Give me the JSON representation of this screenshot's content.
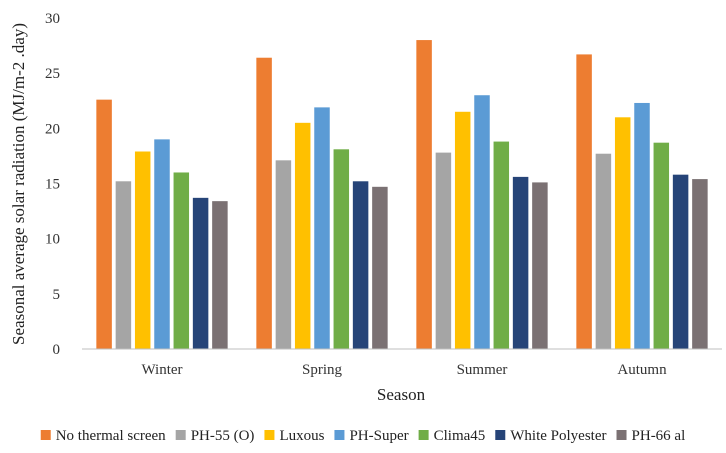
{
  "chart_data": {
    "type": "bar",
    "xlabel": "Season",
    "ylabel": "Seasonal average solar radiation (MJ/m-2 .day)",
    "ylim": [
      0,
      30
    ],
    "yticks": [
      0,
      5,
      10,
      15,
      20,
      25,
      30
    ],
    "grid": false,
    "legend_position": "bottom",
    "categories": [
      "Winter",
      "Spring",
      "Summer",
      "Autumn"
    ],
    "series": [
      {
        "name": "No thermal screen",
        "color": "#ED7D31",
        "values": [
          22.6,
          26.4,
          28.0,
          26.7
        ]
      },
      {
        "name": "PH-55 (O)",
        "color": "#A5A5A5",
        "values": [
          15.2,
          17.1,
          17.8,
          17.7
        ]
      },
      {
        "name": "Luxous",
        "color": "#FFC000",
        "values": [
          17.9,
          20.5,
          21.5,
          21.0
        ]
      },
      {
        "name": "PH-Super",
        "color": "#5B9BD5",
        "values": [
          19.0,
          21.9,
          23.0,
          22.3
        ]
      },
      {
        "name": "Clima45",
        "color": "#70AD47",
        "values": [
          16.0,
          18.1,
          18.8,
          18.7
        ]
      },
      {
        "name": "White Polyester",
        "color": "#264478",
        "values": [
          13.7,
          15.2,
          15.6,
          15.8
        ]
      },
      {
        "name": "PH-66 al",
        "color": "#7B7173",
        "values": [
          13.4,
          14.7,
          15.1,
          15.4
        ]
      }
    ]
  }
}
